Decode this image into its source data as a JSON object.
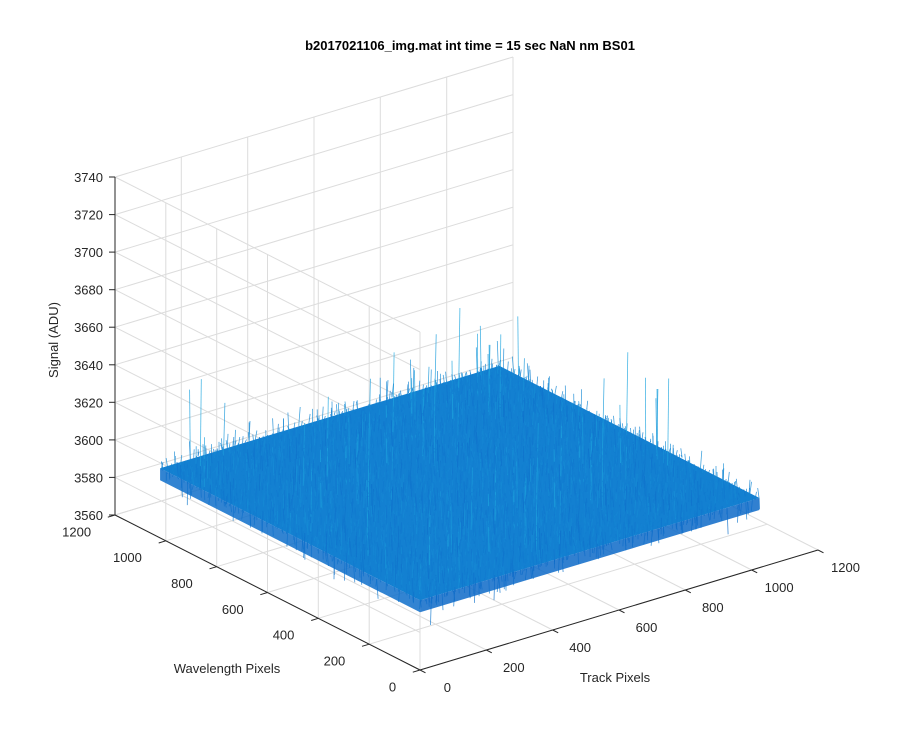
{
  "chart_data": {
    "type": "surface",
    "title": "b2017021106_img.mat int time = 15 sec  NaN nm BS01",
    "xlabel": "Track Pixels",
    "ylabel": "Wavelength Pixels",
    "zlabel": "Signal (ADU)",
    "xlim": [
      0,
      1200
    ],
    "ylim": [
      0,
      1200
    ],
    "zlim": [
      3560,
      3740
    ],
    "xticks": [
      "0",
      "200",
      "400",
      "600",
      "800",
      "1000",
      "1200"
    ],
    "yticks": [
      "0",
      "200",
      "400",
      "600",
      "800",
      "1000",
      "1200"
    ],
    "zticks": [
      "3560",
      "3580",
      "3600",
      "3620",
      "3640",
      "3660",
      "3680",
      "3700",
      "3720",
      "3740"
    ],
    "surface": {
      "x_range": [
        1,
        1024
      ],
      "y_range": [
        1,
        1024
      ],
      "mean": 3597,
      "noise_min": 3570,
      "noise_max": 3645
    },
    "grid": true,
    "colors": {
      "surface_low": "#0a5fc4",
      "surface_high": "#1fa8e0",
      "grid": "#dcdcdc",
      "axis": "#262626"
    }
  }
}
